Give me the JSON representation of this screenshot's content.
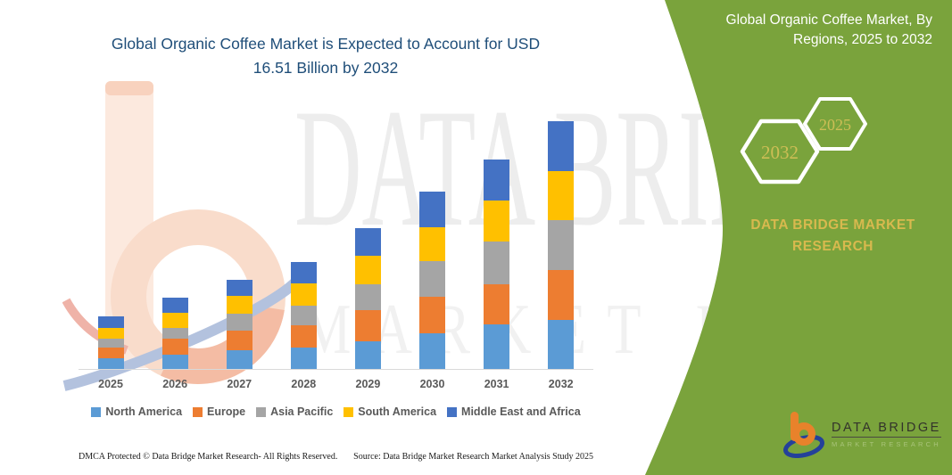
{
  "title": {
    "line1": "Global Organic Coffee Market is Expected to Account for USD",
    "line2": "16.51 Billion by 2032"
  },
  "watermark": {
    "big_text": "DATA BRIDGE",
    "spaced_text": "MARKET RESEARCH",
    "logo_icon": "data-bridge-b-watermark"
  },
  "side_panel": {
    "title": "Global Organic Coffee Market, By Regions, 2025 to 2032",
    "hexagons": [
      {
        "label": "2032"
      },
      {
        "label": "2025"
      }
    ],
    "brand": "DATA BRIDGE MARKET RESEARCH",
    "logo": {
      "name": "DATA BRIDGE",
      "subtitle": "MARKET RESEARCH"
    }
  },
  "footer": {
    "left": "DMCA Protected © Data Bridge Market Research-  All Rights Reserved.",
    "right": "Source: Data Bridge Market Research  Market Analysis Study 2025"
  },
  "colors": {
    "panel_green": "#7AA33C",
    "title_blue": "#1F4E79",
    "gold_text": "#D8B94E",
    "axis_text": "#595959",
    "logo_orange": "#E8822B",
    "logo_blue": "#24419A"
  },
  "chart_data": {
    "type": "bar",
    "stacked": true,
    "unit": "USD Billion",
    "title": "Global Organic Coffee Market is Expected to Account for USD 16.51 Billion by 2032",
    "xlabel": "",
    "ylabel": "",
    "axis_visible": false,
    "grid": false,
    "legend_position": "bottom",
    "ylim": [
      0,
      16.51
    ],
    "total_2032_label": "16.51",
    "categories": [
      "2025",
      "2026",
      "2027",
      "2028",
      "2029",
      "2030",
      "2031",
      "2032"
    ],
    "totals": [
      3.5,
      4.75,
      5.95,
      7.1,
      9.4,
      11.8,
      13.95,
      16.51
    ],
    "series": [
      {
        "name": "North America",
        "color": "#5B9BD5",
        "values": [
          0.7,
          0.95,
          1.25,
          1.4,
          1.85,
          2.35,
          2.95,
          3.25
        ]
      },
      {
        "name": "Europe",
        "color": "#ED7D31",
        "values": [
          0.75,
          1.1,
          1.3,
          1.5,
          2.05,
          2.45,
          2.7,
          3.36
        ]
      },
      {
        "name": "Asia Pacific",
        "color": "#A5A5A5",
        "values": [
          0.6,
          0.7,
          1.15,
          1.3,
          1.75,
          2.4,
          2.85,
          3.3
        ]
      },
      {
        "name": "South America",
        "color": "#FFC000",
        "values": [
          0.7,
          1.0,
          1.15,
          1.5,
          1.9,
          2.25,
          2.75,
          3.3
        ]
      },
      {
        "name": "Middle East and Africa",
        "color": "#4472C4",
        "values": [
          0.75,
          1.0,
          1.1,
          1.4,
          1.85,
          2.35,
          2.7,
          3.3
        ]
      }
    ]
  }
}
